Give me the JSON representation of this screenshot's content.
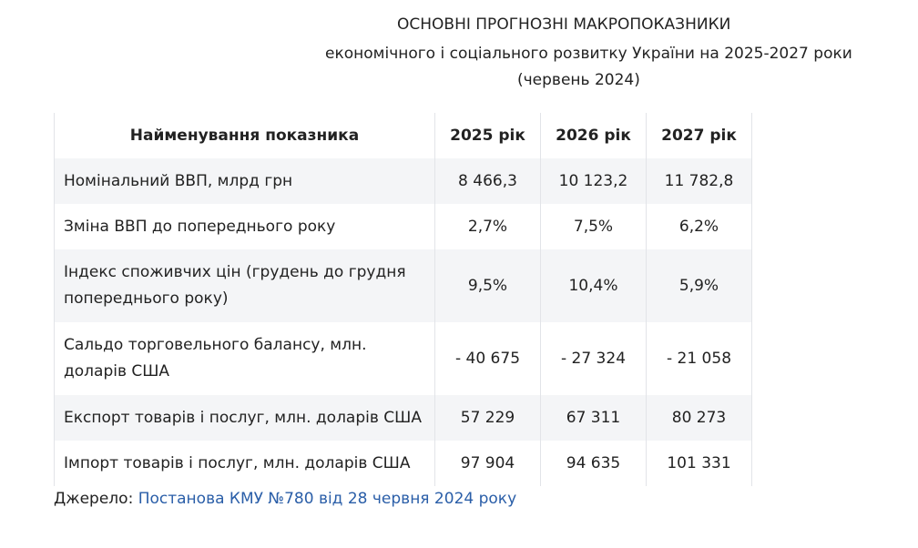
{
  "title": {
    "line1": "ОСНОВНІ ПРОГНОЗНІ МАКРОПОКАЗНИКИ",
    "line2": "економічного і соціального розвитку України на 2025-2027 роки",
    "line3": "(червень 2024)"
  },
  "table": {
    "headers": [
      "Найменування показника",
      "2025 рік",
      "2026 рік",
      "2027 рік"
    ],
    "rows": [
      {
        "name": "Номінальний ВВП, млрд грн",
        "values": [
          "8 466,3",
          "10 123,2",
          "11 782,8"
        ]
      },
      {
        "name": "Зміна ВВП до попереднього року",
        "values": [
          "2,7%",
          "7,5%",
          "6,2%"
        ]
      },
      {
        "name": "Індекс споживчих цін  (грудень до грудня попереднього року)",
        "values": [
          "9,5%",
          "10,4%",
          "5,9%"
        ]
      },
      {
        "name": "Сальдо торговельного балансу, млн. доларів США",
        "values": [
          "- 40 675",
          "- 27 324",
          "- 21 058"
        ]
      },
      {
        "name": "Експорт товарів і послуг, млн. доларів США",
        "values": [
          "57 229",
          "67 311",
          "80 273"
        ]
      },
      {
        "name": "Імпорт товарів і послуг, млн. доларів США",
        "values": [
          "97 904",
          "94 635",
          "101 331"
        ]
      }
    ]
  },
  "source": {
    "label": "Джерело: ",
    "link_text": "Постанова КМУ №780 від 28 червня 2024 року"
  },
  "colors": {
    "text": "#222222",
    "link": "#2a5ea8",
    "row_shade": "#f4f5f7",
    "border": "#e2e4e8"
  }
}
